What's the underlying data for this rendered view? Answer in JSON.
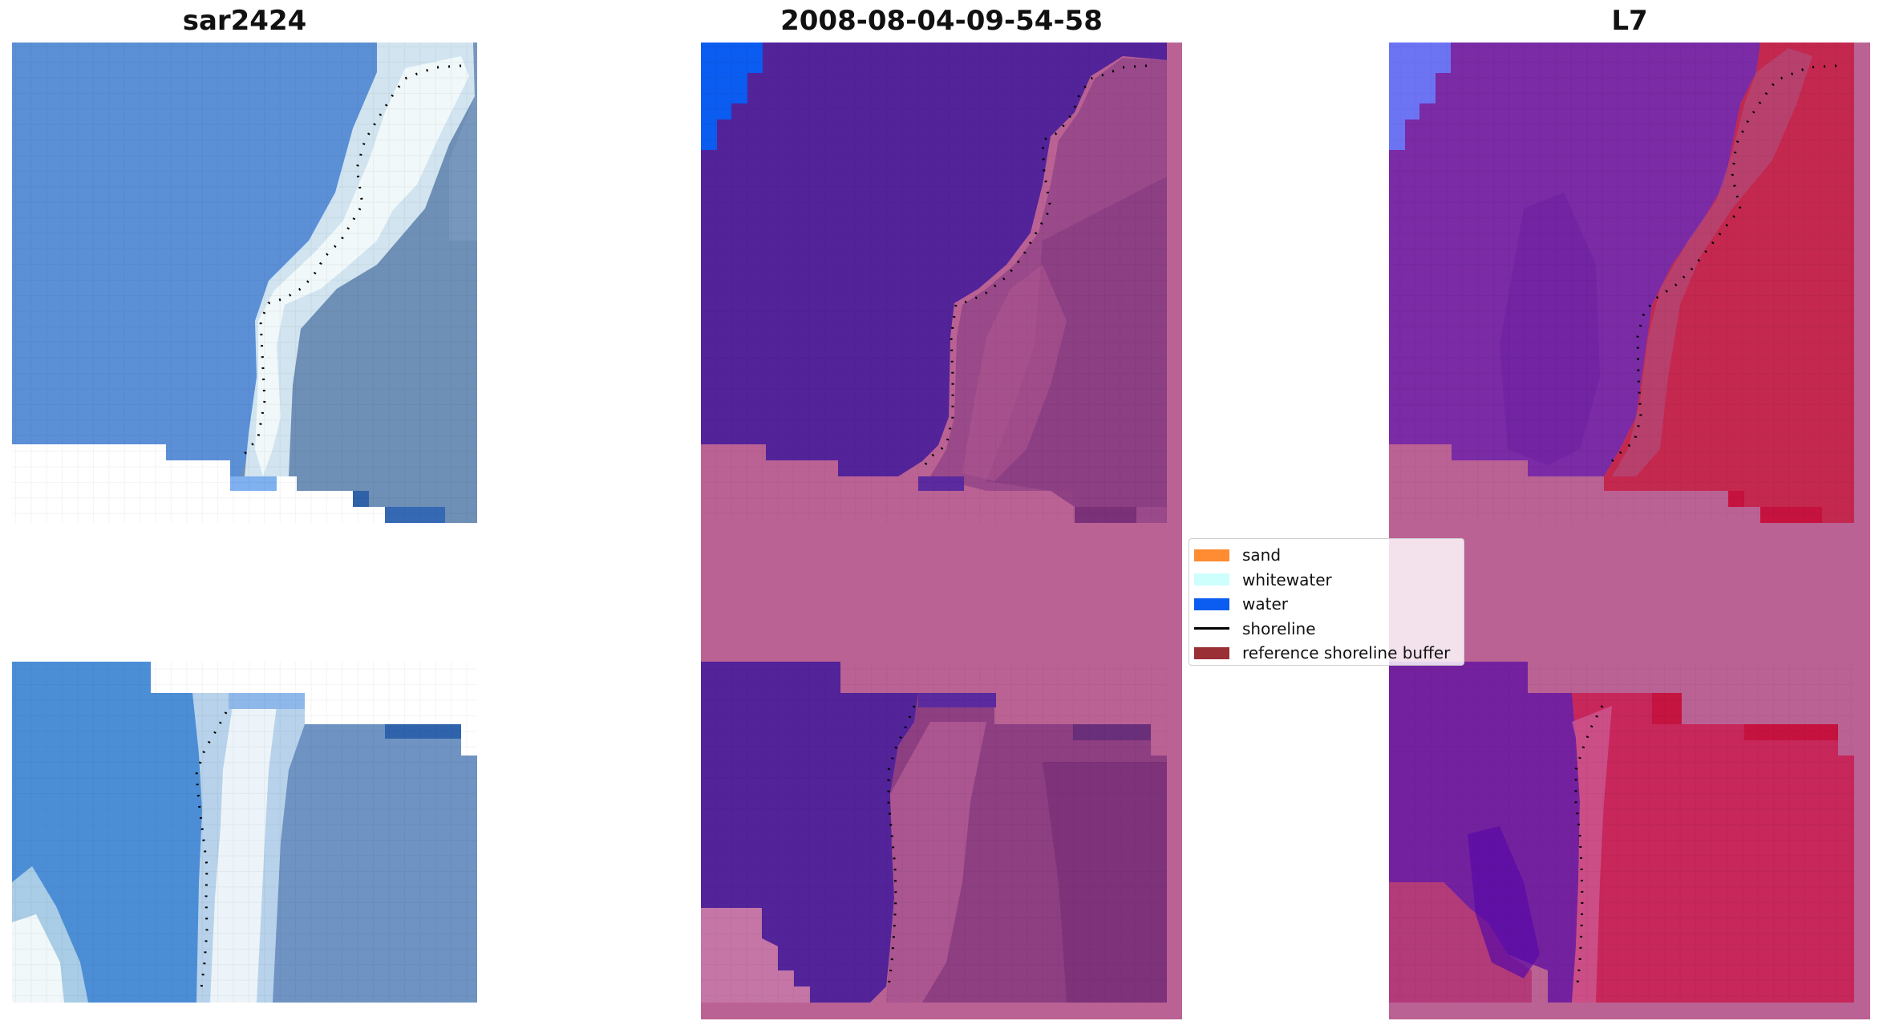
{
  "panels": [
    {
      "title": "sar2424"
    },
    {
      "title": "2008-08-04-09-54-58"
    },
    {
      "title": "L7"
    }
  ],
  "legend": {
    "items": [
      {
        "label": "sand",
        "color": "#ff8c33",
        "kind": "patch"
      },
      {
        "label": "whitewater",
        "color": "#cdfffd",
        "kind": "patch"
      },
      {
        "label": "water",
        "color": "#0b5cf0",
        "kind": "patch"
      },
      {
        "label": "shoreline",
        "color": "#000000",
        "kind": "line"
      },
      {
        "label": "reference shoreline buffer",
        "color": "#9a2f35",
        "kind": "patch"
      }
    ]
  },
  "colors": {
    "rgb_water": "#5a8fd8",
    "rgb_whitewater": "#e6f2f6",
    "rgb_land": "#6e8fb6",
    "class_water": "#53239a",
    "class_buffer": "#bb6294",
    "class_land": "#8b3e82",
    "class_sea_blue": "#0b5cf0",
    "l7_water": "#7a2ba5",
    "l7_land": "#c4284f",
    "l7_blue": "#6c74f4",
    "shoreline": "#000000"
  }
}
